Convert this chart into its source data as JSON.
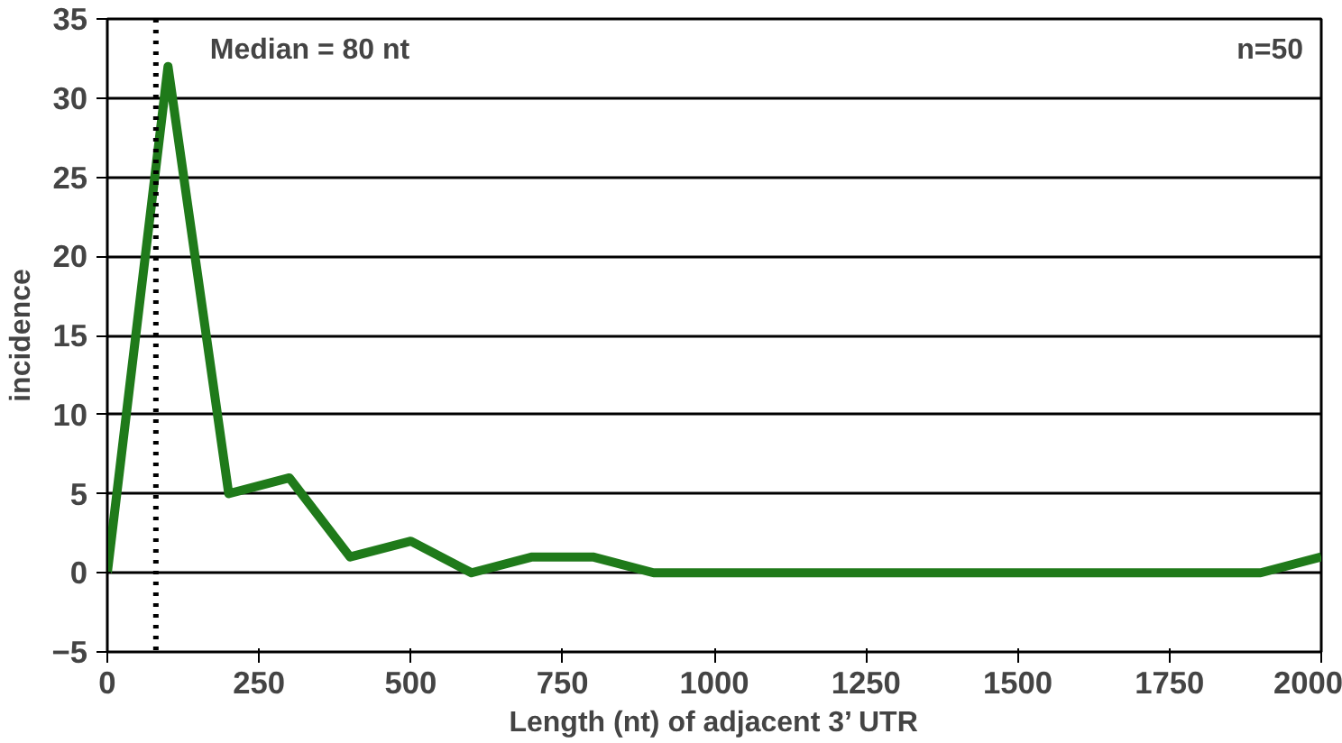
{
  "chart_data": {
    "type": "line",
    "xlabel": "Length (nt) of adjacent 3’ UTR",
    "ylabel": "incidence",
    "x": [
      0,
      100,
      200,
      300,
      400,
      500,
      600,
      700,
      800,
      900,
      1000,
      1100,
      1200,
      1300,
      1400,
      1500,
      1600,
      1700,
      1800,
      1900,
      2000
    ],
    "series": [
      {
        "color": "#1f7a1a",
        "values": [
          0,
          32,
          5,
          6,
          1,
          2,
          0,
          1,
          1,
          0,
          0,
          0,
          0,
          0,
          0,
          0,
          0,
          0,
          0,
          0,
          1
        ]
      }
    ],
    "xlim": [
      0,
      2000
    ],
    "xticks": [
      0,
      250,
      500,
      750,
      1000,
      1250,
      1500,
      1750,
      2000
    ],
    "ylim": [
      -5,
      35
    ],
    "yticks": [
      -5,
      0,
      5,
      10,
      15,
      20,
      25,
      30,
      35
    ],
    "grid": "y",
    "marker": "none",
    "line_style": "solid",
    "ref_lines": [
      {
        "axis": "x",
        "value": 80,
        "label": "Median = 80 nt",
        "line_style": "dotted",
        "color": "#000000"
      }
    ],
    "annotations": [
      "n=50"
    ]
  }
}
